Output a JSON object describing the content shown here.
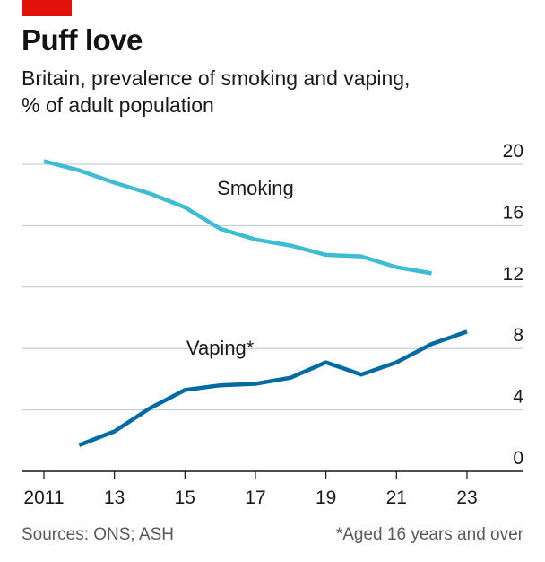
{
  "header": {
    "title": "Puff love",
    "subtitle_line1": "Britain, prevalence of smoking and vaping,",
    "subtitle_line2": "% of adult population"
  },
  "footer": {
    "source": "Sources: ONS; ASH",
    "note": "*Aged 16 years and over"
  },
  "colors": {
    "accent_red": "#e3120b",
    "smoking": "#3ebcd2",
    "vaping": "#006ba2",
    "grid": "#b7c6cf",
    "axis": "#121212"
  },
  "chart_data": {
    "type": "line",
    "title": "Puff love",
    "subtitle": "Britain, prevalence of smoking and vaping, % of adult population",
    "xlim": [
      2011,
      2024
    ],
    "ylim": [
      0,
      20
    ],
    "x_ticks": [
      2011,
      2013,
      2015,
      2017,
      2019,
      2021,
      2023
    ],
    "x_tick_labels": [
      "2011",
      "13",
      "15",
      "17",
      "19",
      "21",
      "23"
    ],
    "y_ticks": [
      0,
      4,
      8,
      12,
      16,
      20
    ],
    "y_tick_labels": [
      "0",
      "4",
      "8",
      "12",
      "16",
      "20"
    ],
    "y_axis_side": "right",
    "grid": true,
    "legend": "inline labels",
    "series": [
      {
        "name": "Smoking",
        "color": "#3ebcd2",
        "label_at": [
          2017,
          18
        ],
        "points": [
          [
            2011,
            20.2
          ],
          [
            2012,
            19.6
          ],
          [
            2013,
            18.8
          ],
          [
            2014,
            18.1
          ],
          [
            2015,
            17.2
          ],
          [
            2016,
            15.8
          ],
          [
            2017,
            15.1
          ],
          [
            2018,
            14.7
          ],
          [
            2019,
            14.1
          ],
          [
            2020,
            14.0
          ],
          [
            2021,
            13.3
          ],
          [
            2022,
            12.9
          ]
        ]
      },
      {
        "name": "Vaping*",
        "color": "#006ba2",
        "label_at": [
          2016,
          7.6
        ],
        "points": [
          [
            2012,
            1.7
          ],
          [
            2013,
            2.6
          ],
          [
            2014,
            4.1
          ],
          [
            2015,
            5.3
          ],
          [
            2016,
            5.6
          ],
          [
            2017,
            5.7
          ],
          [
            2018,
            6.1
          ],
          [
            2019,
            7.1
          ],
          [
            2020,
            6.3
          ],
          [
            2021,
            7.1
          ],
          [
            2022,
            8.3
          ],
          [
            2023,
            9.1
          ]
        ]
      }
    ]
  }
}
